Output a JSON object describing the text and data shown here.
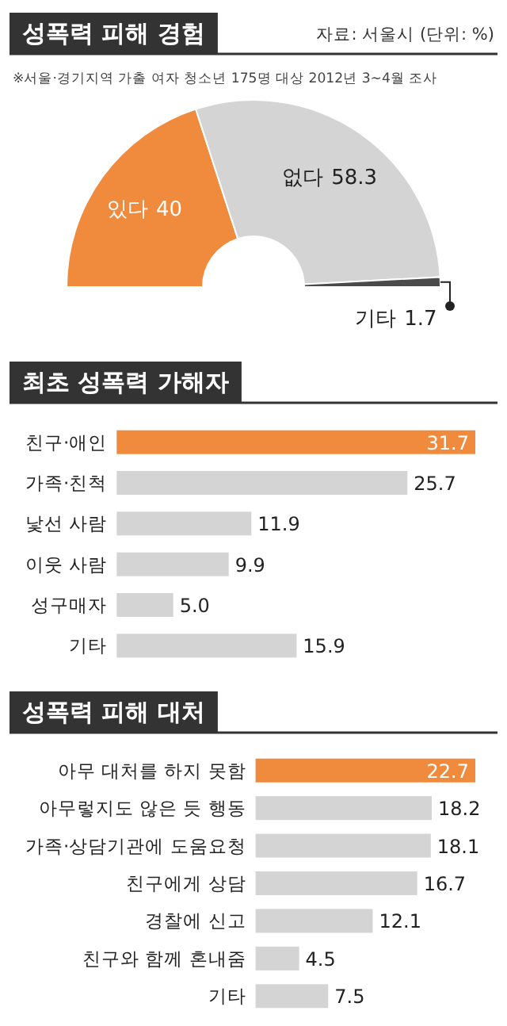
{
  "chart_data": [
    {
      "type": "donut",
      "title": "성폭력 피해 경험",
      "annotations": [
        "자료: 서울시 (단위: %)",
        "※서울·경기지역 가출 여자 청소년 175명 대상 2012년 3~4월 조사"
      ],
      "categories": [
        "있다",
        "없다",
        "기타"
      ],
      "values": [
        40,
        58.3,
        1.7
      ],
      "colors": [
        "#f08a3c",
        "#d4d4d4",
        "#4a4a4a"
      ],
      "data_labels": true
    },
    {
      "type": "bar",
      "orientation": "horizontal",
      "title": "최초 성폭력 가해자",
      "categories": [
        "친구·애인",
        "가족·친척",
        "낯선 사람",
        "이웃 사람",
        "성구매자",
        "기타"
      ],
      "values": [
        31.7,
        25.7,
        11.9,
        9.9,
        5.0,
        15.9
      ],
      "value_labels": [
        "31.7",
        "25.7",
        "11.9",
        "9.9",
        "5.0",
        "15.9"
      ],
      "colors": [
        "#f08a3c",
        "#d4d4d4",
        "#d4d4d4",
        "#d4d4d4",
        "#d4d4d4",
        "#d4d4d4"
      ]
    },
    {
      "type": "bar",
      "orientation": "horizontal",
      "title": "성폭력 피해 대처",
      "categories": [
        "아무 대처를 하지 못함",
        "아무렇지도 않은 듯 행동",
        "가족·상담기관에 도움요청",
        "친구에게 상담",
        "경찰에 신고",
        "친구와 함께 혼내줌",
        "기타"
      ],
      "values": [
        22.7,
        18.2,
        18.1,
        16.7,
        12.1,
        4.5,
        7.5
      ],
      "value_labels": [
        "22.7",
        "18.2",
        "18.1",
        "16.7",
        "12.1",
        "4.5",
        "7.5"
      ],
      "colors": [
        "#f08a3c",
        "#d4d4d4",
        "#d4d4d4",
        "#d4d4d4",
        "#d4d4d4",
        "#d4d4d4",
        "#d4d4d4"
      ]
    }
  ]
}
